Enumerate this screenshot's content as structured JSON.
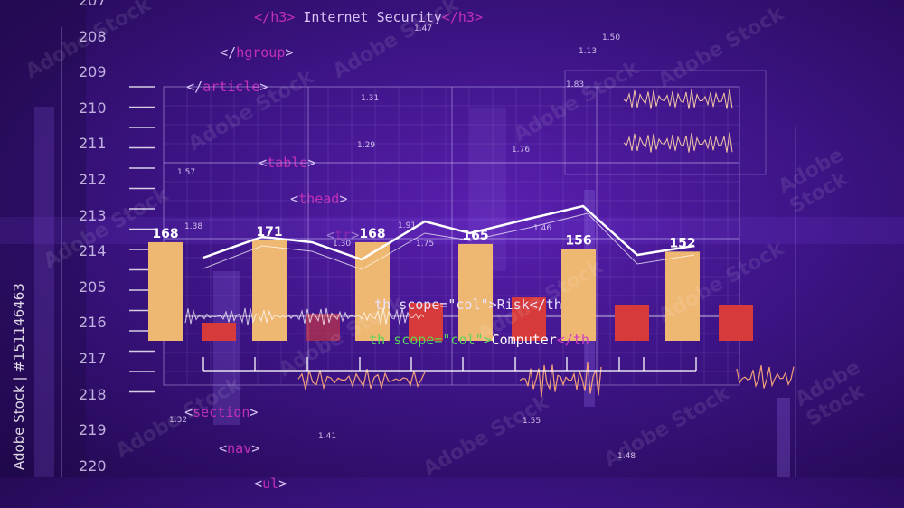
{
  "line_numbers": [
    "207",
    "208",
    "209",
    "210",
    "211",
    "212",
    "213",
    "214",
    "205",
    "216",
    "217",
    "218",
    "219",
    "220"
  ],
  "code_lines": [
    {
      "open": "</",
      "tag": "h3",
      "close": ">",
      "text": "Internet Security",
      "end": "</h3>"
    },
    {
      "open": "</",
      "tag": "hgroup",
      "close": ">"
    },
    {
      "open": "</",
      "tag": "article",
      "close": ">"
    },
    {
      "open": "<",
      "tag": "table",
      "close": ">"
    },
    {
      "open": "<",
      "tag": "thead",
      "close": ">"
    },
    {
      "open": "<",
      "tag": "tr",
      "close": ">"
    },
    {
      "open": "<",
      "tag": "section",
      "close": ">"
    },
    {
      "open": "<",
      "tag": "nav",
      "close": ">"
    },
    {
      "open": "<",
      "tag": "ul",
      "close": ">"
    }
  ],
  "overlay_code": {
    "risk": "th scope=\"col\">Risk</th",
    "computer_prefix": "th scope=\"col\">",
    "computer_word": "Computer",
    "computer_suffix": "</th"
  },
  "stock_id": "Adobe Stock | #151146463",
  "watermark_word": "Adobe Stock",
  "tiny_numbers": [
    "1.47",
    "1.13",
    "1.50",
    "1.83",
    "1.31",
    "1.29",
    "1.76",
    "1.57",
    "1.38",
    "1.75",
    "1.30",
    "1.91",
    "1.46",
    "1.32",
    "1.41",
    "1.55",
    "1.48"
  ],
  "chart_data": {
    "type": "bar",
    "bar_labels": [
      "168",
      "171",
      "168",
      "165",
      "156",
      "152"
    ],
    "tall_bar_values": [
      168,
      171,
      168,
      165,
      156,
      152
    ],
    "short_bar_count": 6,
    "colors": {
      "tall": "#eeb873",
      "short": "#d63a3a",
      "line": "#ffffff",
      "grid": "#c9b8f2",
      "wave": "#f2a07a"
    }
  }
}
